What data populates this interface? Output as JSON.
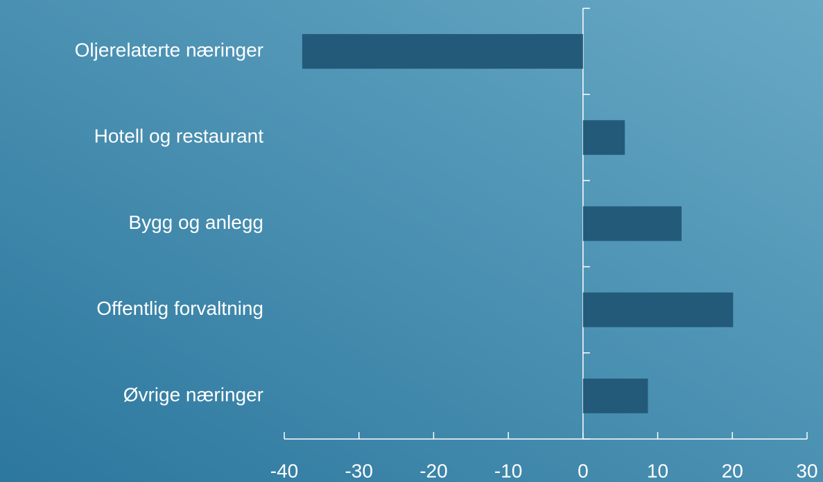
{
  "chart_data": {
    "type": "hbar",
    "categories": [
      "Oljerelaterte næringer",
      "Hotell og restaurant",
      "Bygg og anlegg",
      "Offentlig forvaltning",
      "Øvrige næringer"
    ],
    "values": [
      -37.6,
      5.6,
      13.2,
      20.1,
      8.7
    ],
    "color": "#235a7a",
    "xlim": [
      -40,
      30
    ],
    "xticks": [
      -40,
      -30,
      -20,
      -10,
      0,
      10,
      20,
      30
    ]
  }
}
